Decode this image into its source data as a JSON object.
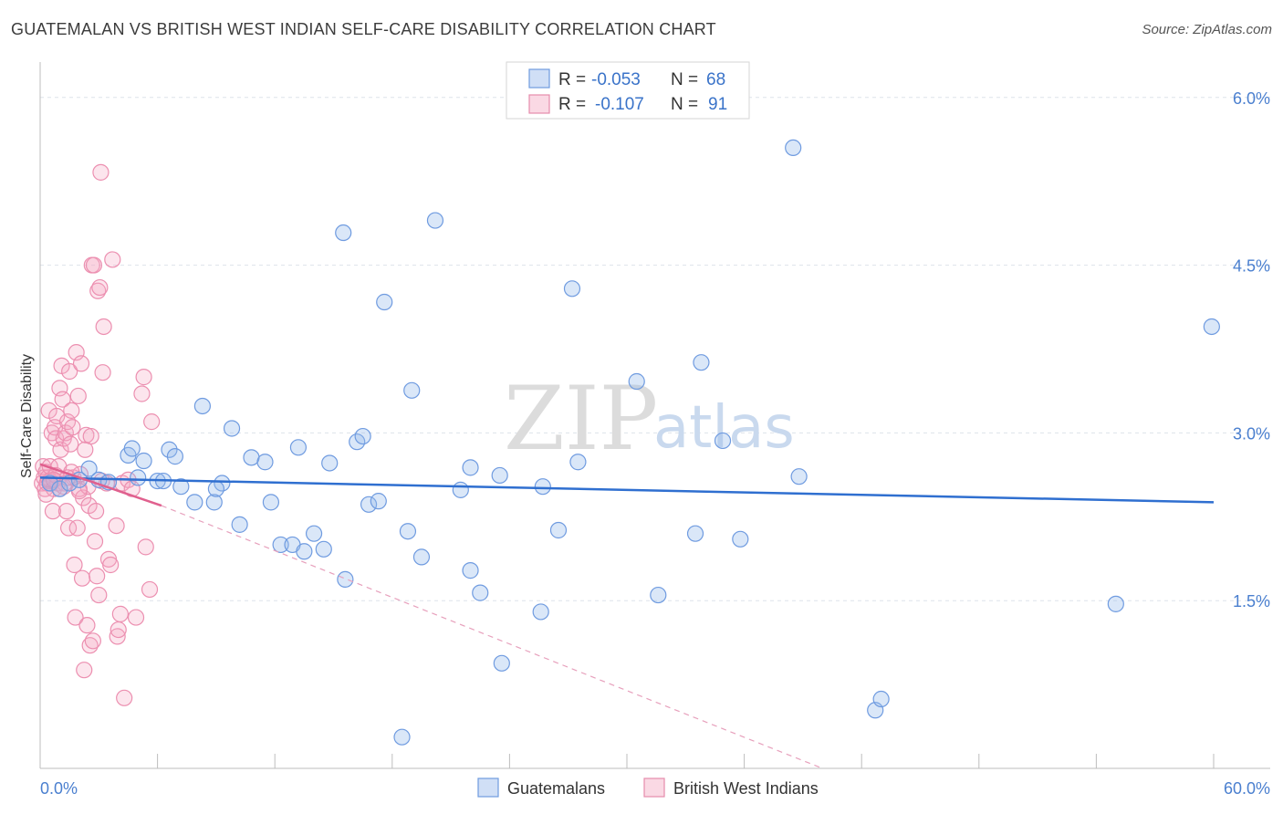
{
  "header": {
    "title": "GUATEMALAN VS BRITISH WEST INDIAN SELF-CARE DISABILITY CORRELATION CHART",
    "source": "Source: ZipAtlas.com"
  },
  "watermark": {
    "zip": "ZIP",
    "atlas": "atlas"
  },
  "colors": {
    "blue": "#4a85d4",
    "blue_fill": "rgba(150,185,235,0.35)",
    "pink": "#e2709a",
    "pink_fill": "rgba(245,170,195,0.30)",
    "axis_text": "#4a7fcf",
    "grid": "#dde3ea"
  },
  "legend": {
    "r_label": "R =",
    "n_label": "N =",
    "rows": [
      {
        "name": "Guatemalans",
        "r": "-0.053",
        "n": "68"
      },
      {
        "name": "British West Indians",
        "r": "-0.107",
        "n": "91"
      }
    ]
  },
  "chart_data": {
    "type": "scatter",
    "title": "GUATEMALAN VS BRITISH WEST INDIAN SELF-CARE DISABILITY CORRELATION CHART",
    "xlabel": "",
    "ylabel": "Self-Care Disability",
    "xlim": [
      0,
      60
    ],
    "ylim": [
      0,
      6.3
    ],
    "x_tick_labels": [
      "0.0%",
      "60.0%"
    ],
    "y_ticks": [
      1.5,
      3.0,
      4.5,
      6.0
    ],
    "y_tick_labels": [
      "1.5%",
      "3.0%",
      "4.5%",
      "6.0%"
    ],
    "legend_position": "top-center",
    "series": [
      {
        "name": "Guatemalans",
        "color": "#4a85d4",
        "trend": {
          "x": [
            0,
            60
          ],
          "y": [
            2.6,
            2.38
          ]
        },
        "points": [
          [
            0.5,
            2.55
          ],
          [
            1.0,
            2.5
          ],
          [
            1.5,
            2.55
          ],
          [
            2.0,
            2.58
          ],
          [
            2.5,
            2.68
          ],
          [
            3.0,
            2.58
          ],
          [
            3.5,
            2.56
          ],
          [
            4.5,
            2.8
          ],
          [
            4.7,
            2.86
          ],
          [
            5.3,
            2.75
          ],
          [
            6.0,
            2.57
          ],
          [
            6.3,
            2.57
          ],
          [
            6.6,
            2.85
          ],
          [
            6.9,
            2.79
          ],
          [
            7.2,
            2.52
          ],
          [
            7.9,
            2.38
          ],
          [
            8.3,
            3.24
          ],
          [
            8.9,
            2.38
          ],
          [
            9.3,
            2.55
          ],
          [
            9.8,
            3.04
          ],
          [
            10.2,
            2.18
          ],
          [
            10.8,
            2.78
          ],
          [
            11.5,
            2.74
          ],
          [
            11.8,
            2.38
          ],
          [
            12.3,
            2.0
          ],
          [
            12.9,
            2.0
          ],
          [
            13.2,
            2.87
          ],
          [
            13.5,
            1.94
          ],
          [
            14.0,
            2.1
          ],
          [
            14.5,
            1.96
          ],
          [
            14.8,
            2.73
          ],
          [
            15.5,
            4.79
          ],
          [
            15.6,
            1.69
          ],
          [
            16.2,
            2.92
          ],
          [
            16.5,
            2.97
          ],
          [
            16.8,
            2.36
          ],
          [
            17.3,
            2.39
          ],
          [
            17.6,
            4.17
          ],
          [
            18.8,
            2.12
          ],
          [
            19.0,
            3.38
          ],
          [
            19.5,
            1.89
          ],
          [
            20.2,
            4.9
          ],
          [
            21.5,
            2.49
          ],
          [
            22.0,
            1.77
          ],
          [
            22.0,
            2.69
          ],
          [
            22.5,
            1.57
          ],
          [
            23.5,
            2.62
          ],
          [
            23.6,
            0.94
          ],
          [
            25.6,
            1.4
          ],
          [
            25.7,
            2.52
          ],
          [
            26.5,
            2.13
          ],
          [
            27.2,
            4.29
          ],
          [
            27.5,
            2.74
          ],
          [
            30.5,
            3.46
          ],
          [
            31.6,
            1.55
          ],
          [
            33.5,
            2.1
          ],
          [
            33.8,
            3.63
          ],
          [
            34.9,
            2.93
          ],
          [
            35.8,
            2.05
          ],
          [
            38.5,
            5.55
          ],
          [
            38.8,
            2.61
          ],
          [
            42.7,
            0.52
          ],
          [
            43.0,
            0.62
          ],
          [
            55.0,
            1.47
          ],
          [
            59.9,
            3.95
          ],
          [
            18.5,
            0.28
          ],
          [
            5.0,
            2.6
          ],
          [
            9.0,
            2.5
          ]
        ]
      },
      {
        "name": "British West Indians",
        "color": "#e2709a",
        "trend": {
          "x": [
            0,
            6.2
          ],
          "y": [
            2.72,
            2.35
          ]
        },
        "trend_extended": {
          "x": [
            6.2,
            40.0
          ],
          "y": [
            2.35,
            0.0
          ]
        },
        "points": [
          [
            0.1,
            2.55
          ],
          [
            0.15,
            2.7
          ],
          [
            0.2,
            2.6
          ],
          [
            0.25,
            2.5
          ],
          [
            0.3,
            2.65
          ],
          [
            0.35,
            2.55
          ],
          [
            0.4,
            2.6
          ],
          [
            0.45,
            3.2
          ],
          [
            0.5,
            2.7
          ],
          [
            0.55,
            2.55
          ],
          [
            0.6,
            3.0
          ],
          [
            0.65,
            2.3
          ],
          [
            0.7,
            2.5
          ],
          [
            0.75,
            3.05
          ],
          [
            0.8,
            2.95
          ],
          [
            0.85,
            3.15
          ],
          [
            0.9,
            2.55
          ],
          [
            0.95,
            2.7
          ],
          [
            1.0,
            3.4
          ],
          [
            1.05,
            2.85
          ],
          [
            1.1,
            3.6
          ],
          [
            1.15,
            3.3
          ],
          [
            1.2,
            2.95
          ],
          [
            1.25,
            2.55
          ],
          [
            1.3,
            3.0
          ],
          [
            1.35,
            2.3
          ],
          [
            1.4,
            3.1
          ],
          [
            1.45,
            2.15
          ],
          [
            1.5,
            3.55
          ],
          [
            1.55,
            2.9
          ],
          [
            1.6,
            3.2
          ],
          [
            1.65,
            3.05
          ],
          [
            1.7,
            2.6
          ],
          [
            1.75,
            1.82
          ],
          [
            1.8,
            1.35
          ],
          [
            1.85,
            3.72
          ],
          [
            1.9,
            2.15
          ],
          [
            1.95,
            3.33
          ],
          [
            2.0,
            2.5
          ],
          [
            2.05,
            2.63
          ],
          [
            2.1,
            3.62
          ],
          [
            2.15,
            1.7
          ],
          [
            2.2,
            2.42
          ],
          [
            2.25,
            0.88
          ],
          [
            2.3,
            2.85
          ],
          [
            2.35,
            2.98
          ],
          [
            2.4,
            1.28
          ],
          [
            2.45,
            2.52
          ],
          [
            2.5,
            2.35
          ],
          [
            2.55,
            1.1
          ],
          [
            2.6,
            2.97
          ],
          [
            2.65,
            4.5
          ],
          [
            2.7,
            1.14
          ],
          [
            2.75,
            4.5
          ],
          [
            2.8,
            2.03
          ],
          [
            2.85,
            2.3
          ],
          [
            2.9,
            1.72
          ],
          [
            2.95,
            4.27
          ],
          [
            3.0,
            1.55
          ],
          [
            3.05,
            4.3
          ],
          [
            3.1,
            5.33
          ],
          [
            3.15,
            2.57
          ],
          [
            3.2,
            3.54
          ],
          [
            3.25,
            3.95
          ],
          [
            3.4,
            2.55
          ],
          [
            3.5,
            1.87
          ],
          [
            3.6,
            1.82
          ],
          [
            3.7,
            4.55
          ],
          [
            3.9,
            2.17
          ],
          [
            3.95,
            1.18
          ],
          [
            4.0,
            1.24
          ],
          [
            4.1,
            1.38
          ],
          [
            4.2,
            2.55
          ],
          [
            4.3,
            0.63
          ],
          [
            4.5,
            2.58
          ],
          [
            4.7,
            2.5
          ],
          [
            4.9,
            1.35
          ],
          [
            5.2,
            3.35
          ],
          [
            5.3,
            3.5
          ],
          [
            5.4,
            1.98
          ],
          [
            5.6,
            1.6
          ],
          [
            5.7,
            3.1
          ],
          [
            0.5,
            2.57
          ],
          [
            0.8,
            2.62
          ],
          [
            1.2,
            2.52
          ],
          [
            1.6,
            2.65
          ],
          [
            2.0,
            2.48
          ],
          [
            0.3,
            2.45
          ],
          [
            0.7,
            2.58
          ],
          [
            1.0,
            2.5
          ],
          [
            1.4,
            2.6
          ]
        ]
      }
    ]
  }
}
